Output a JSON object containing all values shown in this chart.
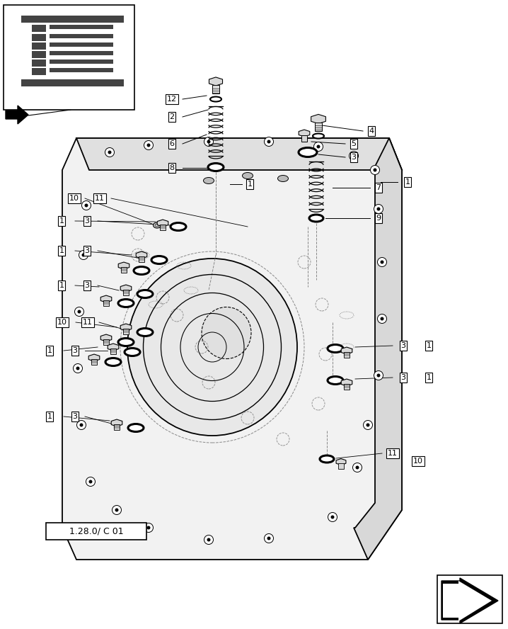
{
  "bg_color": "#ffffff",
  "fig_width": 7.18,
  "fig_height": 8.88,
  "title_text": "1.28.0/ C 01",
  "housing_color": "#f0f0f0",
  "housing_edge": "#000000",
  "part_fill": "#d8d8d8",
  "part_edge": "#000000"
}
